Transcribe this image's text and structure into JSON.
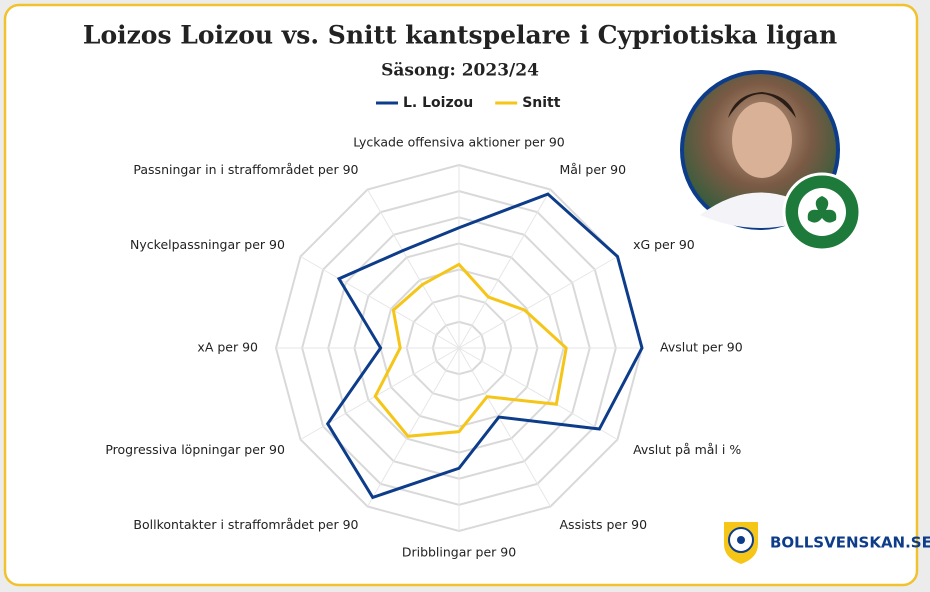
{
  "chart_data": {
    "type": "radar",
    "title": "Loizos Loizou vs. Snitt kantspelare i Cypriotiska ligan",
    "subtitle": "Säsong: 2023/24",
    "categories": [
      "Lyckade offensiva aktioner per 90",
      "Mål per 90",
      "xG per 90",
      "Avslut per 90",
      "Avslut på mål i %",
      "Assists per 90",
      "Dribblingar per 90",
      "Bollkontakter i straffområdet per 90",
      "Progressiva löpningar per 90",
      "xA per 90",
      "Nyckelpassningar per 90",
      "Passningar in i straffområdet per 90"
    ],
    "series": [
      {
        "name": "L. Loizou",
        "color": "#0d3d8a",
        "values": [
          4.6,
          6.8,
          7.0,
          7.0,
          6.2,
          3.05,
          4.6,
          6.6,
          5.8,
          3.0,
          5.3,
          4.3
        ]
      },
      {
        "name": "Snitt",
        "color": "#f5c518",
        "values": [
          3.2,
          2.25,
          2.9,
          4.1,
          4.3,
          2.15,
          3.2,
          3.9,
          3.7,
          2.25,
          2.9,
          2.8
        ]
      }
    ],
    "rlim": [
      0,
      7
    ],
    "rticks": [
      1,
      2,
      3,
      4,
      5,
      6,
      7
    ],
    "grid": true,
    "legend": "top",
    "branding": "BOLLSVENSKAN.SE"
  }
}
